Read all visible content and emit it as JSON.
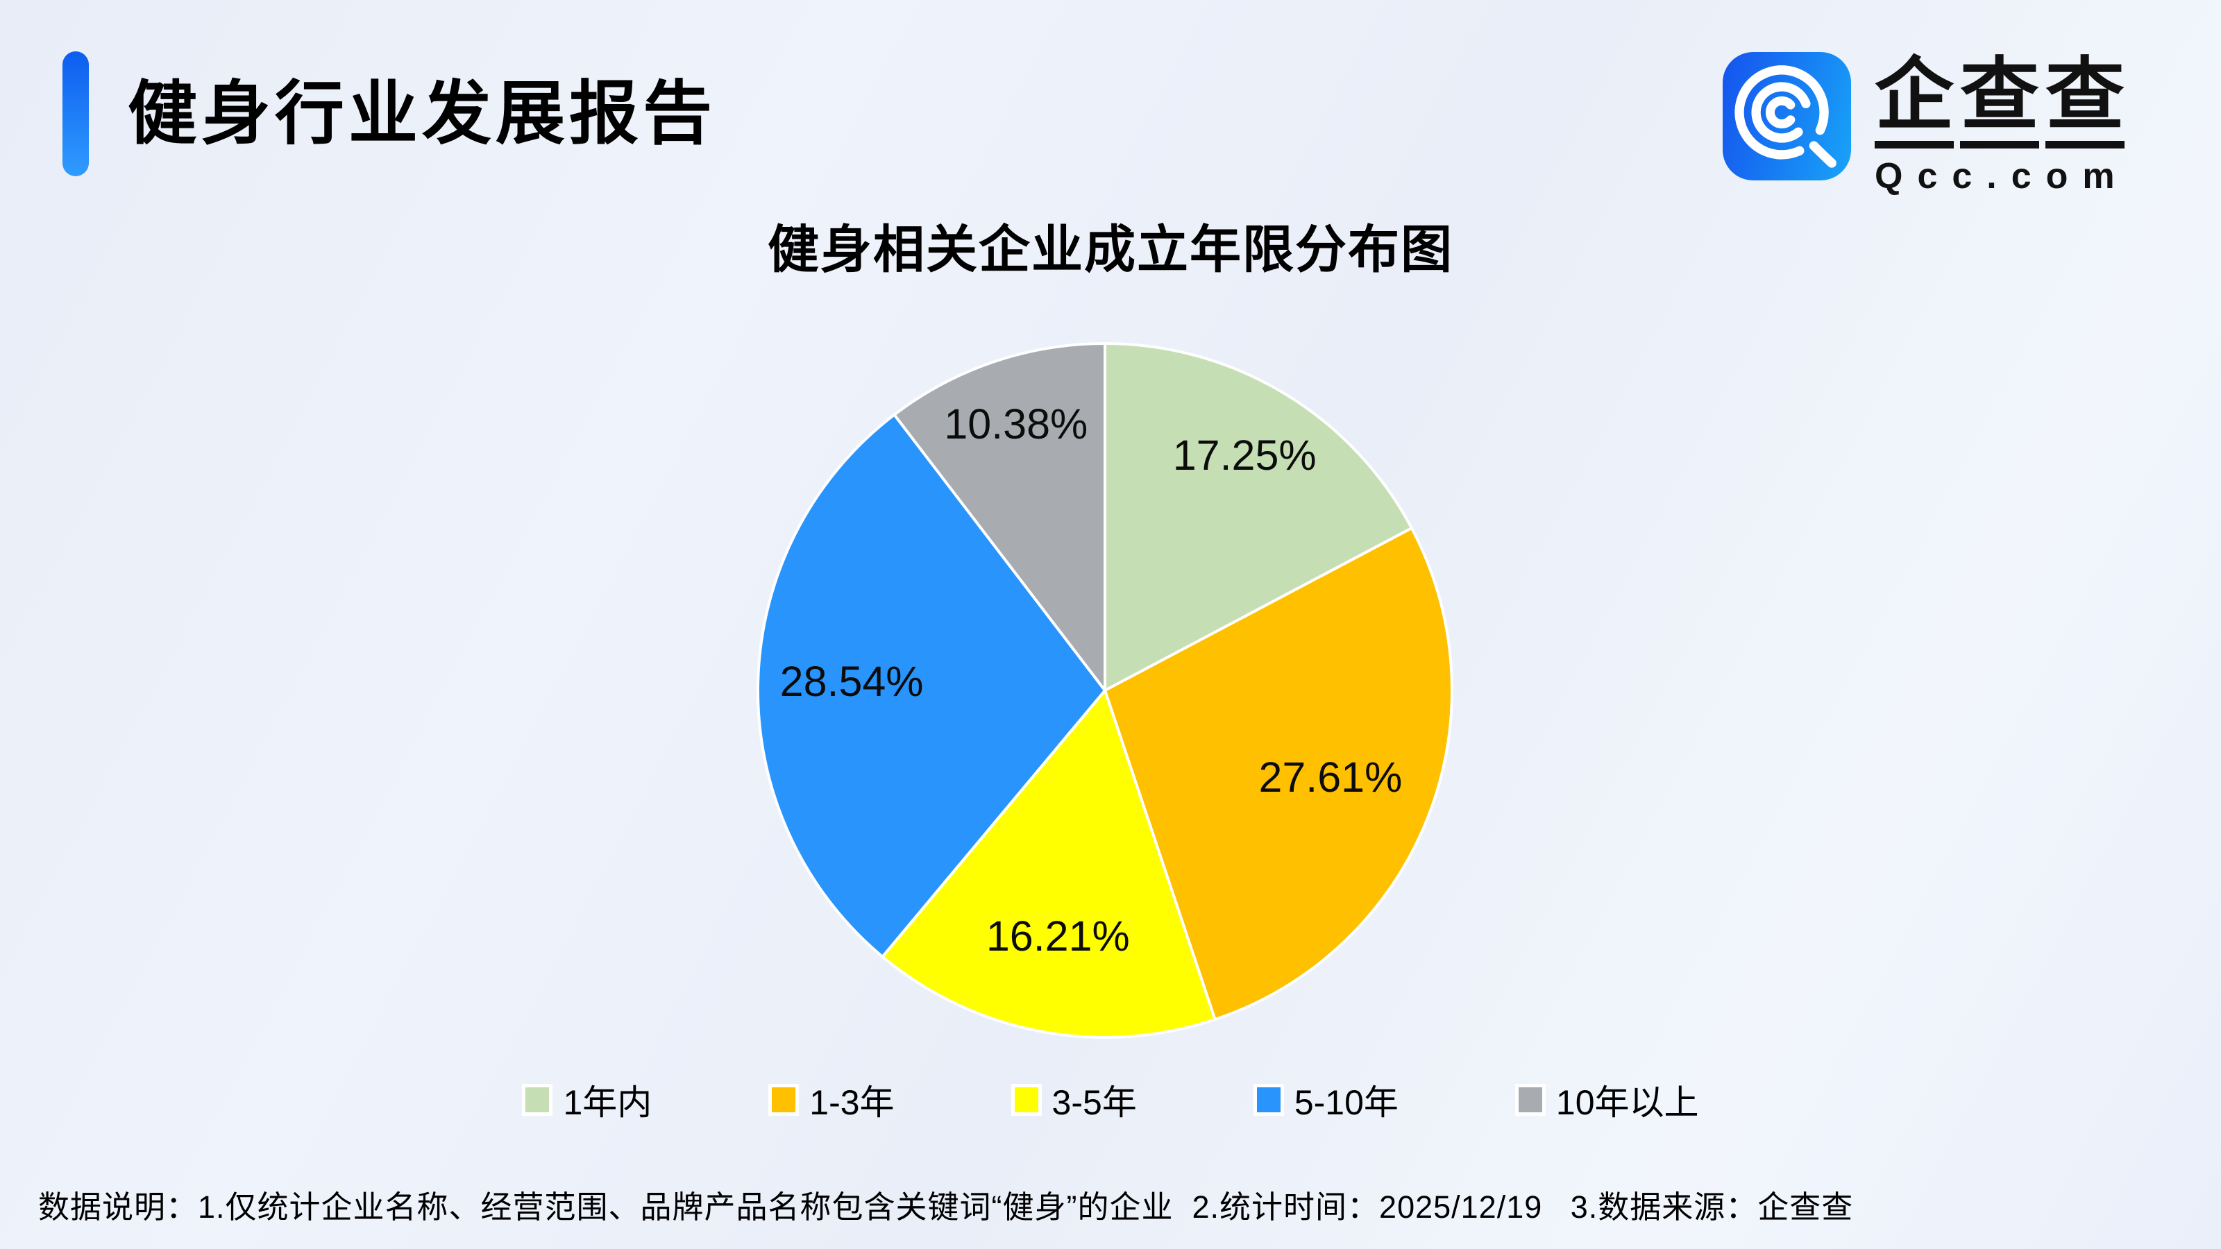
{
  "page": {
    "title": "健身行业发展报告"
  },
  "logo": {
    "brand": "企查查",
    "domain": "Qcc.com"
  },
  "chart_data": {
    "type": "pie",
    "title": "健身相关企业成立年限分布图",
    "categories": [
      "1年内",
      "1-3年",
      "3-5年",
      "5-10年",
      "10年以上"
    ],
    "values": [
      17.25,
      27.61,
      16.21,
      28.54,
      10.38
    ],
    "value_labels": [
      "17.25%",
      "27.61%",
      "16.21%",
      "28.54%",
      "10.38%"
    ],
    "slice_colors": [
      "#c6deb3",
      "#ffc000",
      "#ffff00",
      "#2994fb",
      "#a8acb0"
    ],
    "label_radius_fraction": [
      0.78,
      0.7,
      0.73,
      0.73,
      0.8
    ],
    "start_angle": "12-oclock",
    "direction": "clockwise",
    "legend_position": "bottom",
    "slice_border_color": "#ffffff",
    "label_color": "#0c0c0c"
  },
  "footer": {
    "note": "数据说明：1.仅统计企业名称、经营范围、品牌产品名称包含关键词“健身”的企业  2.统计时间：2025/12/19   3.数据来源：企查查"
  },
  "colors": {
    "accent_bar_top": "#0d5def",
    "accent_bar_bottom": "#2f9cff",
    "logo_gradient_start": "#1553ee",
    "logo_gradient_end": "#18a4f8",
    "background_tint": "#ebeffa",
    "text": "#000000"
  }
}
